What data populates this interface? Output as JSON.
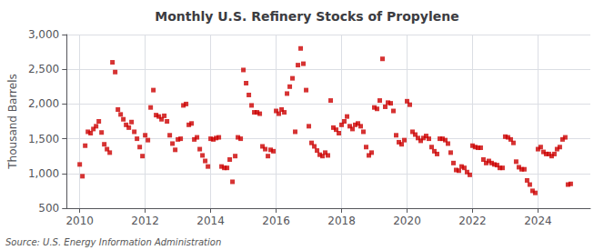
{
  "chart_data": {
    "type": "scatter",
    "title": "Monthly U.S. Refinery Stocks of Propylene",
    "ylabel": "Thousand Barrels",
    "annotations": [
      "Source: U.S. Energy Information Administration"
    ],
    "color": "#cc0000",
    "marker": "square",
    "grid": true,
    "xlim": [
      2009.6,
      2025.6
    ],
    "xticks": [
      2010,
      2012,
      2014,
      2016,
      2018,
      2020,
      2022,
      2024
    ],
    "ylim": [
      500,
      3000
    ],
    "yticks": [
      500,
      {
        "value": 1000,
        "label": "1,000"
      },
      {
        "value": 1500,
        "label": "1,500"
      },
      {
        "value": 2000,
        "label": "2,000"
      },
      {
        "value": 2500,
        "label": "2,500"
      },
      {
        "value": 3000,
        "label": "3,000"
      }
    ],
    "x": [
      2010.0,
      2010.083,
      2010.167,
      2010.25,
      2010.333,
      2010.417,
      2010.5,
      2010.583,
      2010.667,
      2010.75,
      2010.833,
      2010.917,
      2011.0,
      2011.083,
      2011.167,
      2011.25,
      2011.333,
      2011.417,
      2011.5,
      2011.583,
      2011.667,
      2011.75,
      2011.833,
      2011.917,
      2012.0,
      2012.083,
      2012.167,
      2012.25,
      2012.333,
      2012.417,
      2012.5,
      2012.583,
      2012.667,
      2012.75,
      2012.833,
      2012.917,
      2013.0,
      2013.083,
      2013.167,
      2013.25,
      2013.333,
      2013.417,
      2013.5,
      2013.583,
      2013.667,
      2013.75,
      2013.833,
      2013.917,
      2014.0,
      2014.083,
      2014.167,
      2014.25,
      2014.333,
      2014.417,
      2014.5,
      2014.583,
      2014.667,
      2014.75,
      2014.833,
      2014.917,
      2015.0,
      2015.083,
      2015.167,
      2015.25,
      2015.333,
      2015.417,
      2015.5,
      2015.583,
      2015.667,
      2015.75,
      2015.833,
      2015.917,
      2016.0,
      2016.083,
      2016.167,
      2016.25,
      2016.333,
      2016.417,
      2016.5,
      2016.583,
      2016.667,
      2016.75,
      2016.833,
      2016.917,
      2017.0,
      2017.083,
      2017.167,
      2017.25,
      2017.333,
      2017.417,
      2017.5,
      2017.583,
      2017.667,
      2017.75,
      2017.833,
      2017.917,
      2018.0,
      2018.083,
      2018.167,
      2018.25,
      2018.333,
      2018.417,
      2018.5,
      2018.583,
      2018.667,
      2018.75,
      2018.833,
      2018.917,
      2019.0,
      2019.083,
      2019.167,
      2019.25,
      2019.333,
      2019.417,
      2019.5,
      2019.583,
      2019.667,
      2019.75,
      2019.833,
      2019.917,
      2020.0,
      2020.083,
      2020.167,
      2020.25,
      2020.333,
      2020.417,
      2020.5,
      2020.583,
      2020.667,
      2020.75,
      2020.833,
      2020.917,
      2021.0,
      2021.083,
      2021.167,
      2021.25,
      2021.333,
      2021.417,
      2021.5,
      2021.583,
      2021.667,
      2021.75,
      2021.833,
      2021.917,
      2022.0,
      2022.083,
      2022.167,
      2022.25,
      2022.333,
      2022.417,
      2022.5,
      2022.583,
      2022.667,
      2022.75,
      2022.833,
      2022.917,
      2023.0,
      2023.083,
      2023.167,
      2023.25,
      2023.333,
      2023.417,
      2023.5,
      2023.583,
      2023.667,
      2023.75,
      2023.833,
      2023.917,
      2024.0,
      2024.083,
      2024.167,
      2024.25,
      2024.333,
      2024.417,
      2024.5,
      2024.583,
      2024.667,
      2024.75,
      2024.833,
      2024.917,
      2025.0
    ],
    "values": [
      1130,
      960,
      1400,
      1600,
      1580,
      1640,
      1680,
      1750,
      1590,
      1420,
      1350,
      1300,
      2600,
      2460,
      1920,
      1850,
      1780,
      1700,
      1660,
      1740,
      1600,
      1500,
      1380,
      1250,
      1550,
      1480,
      1950,
      2200,
      1840,
      1820,
      1780,
      1830,
      1750,
      1550,
      1430,
      1340,
      1490,
      1500,
      1980,
      2000,
      1700,
      1720,
      1490,
      1520,
      1350,
      1260,
      1180,
      1100,
      1500,
      1490,
      1510,
      1520,
      1100,
      1080,
      1080,
      1200,
      880,
      1250,
      1520,
      1500,
      2490,
      2300,
      2130,
      1980,
      1880,
      1880,
      1860,
      1390,
      1350,
      1250,
      1340,
      1320,
      1900,
      1860,
      1920,
      1880,
      2150,
      2250,
      2370,
      1600,
      2560,
      2800,
      2580,
      2200,
      1680,
      1440,
      1390,
      1330,
      1270,
      1250,
      1300,
      1260,
      2050,
      1660,
      1630,
      1580,
      1700,
      1750,
      1820,
      1680,
      1640,
      1700,
      1720,
      1680,
      1600,
      1380,
      1260,
      1300,
      1950,
      1930,
      2050,
      2650,
      1960,
      2020,
      2010,
      1900,
      1550,
      1450,
      1420,
      1480,
      2040,
      1990,
      1600,
      1560,
      1510,
      1470,
      1510,
      1540,
      1500,
      1380,
      1320,
      1280,
      1500,
      1500,
      1480,
      1430,
      1300,
      1150,
      1050,
      1040,
      1100,
      1080,
      1020,
      980,
      1400,
      1380,
      1370,
      1370,
      1200,
      1150,
      1180,
      1150,
      1130,
      1120,
      1080,
      1080,
      1530,
      1520,
      1490,
      1440,
      1170,
      1090,
      1060,
      1060,
      900,
      840,
      750,
      720,
      1350,
      1380,
      1310,
      1280,
      1280,
      1250,
      1280,
      1350,
      1380,
      1490,
      1520,
      840,
      850
    ]
  }
}
